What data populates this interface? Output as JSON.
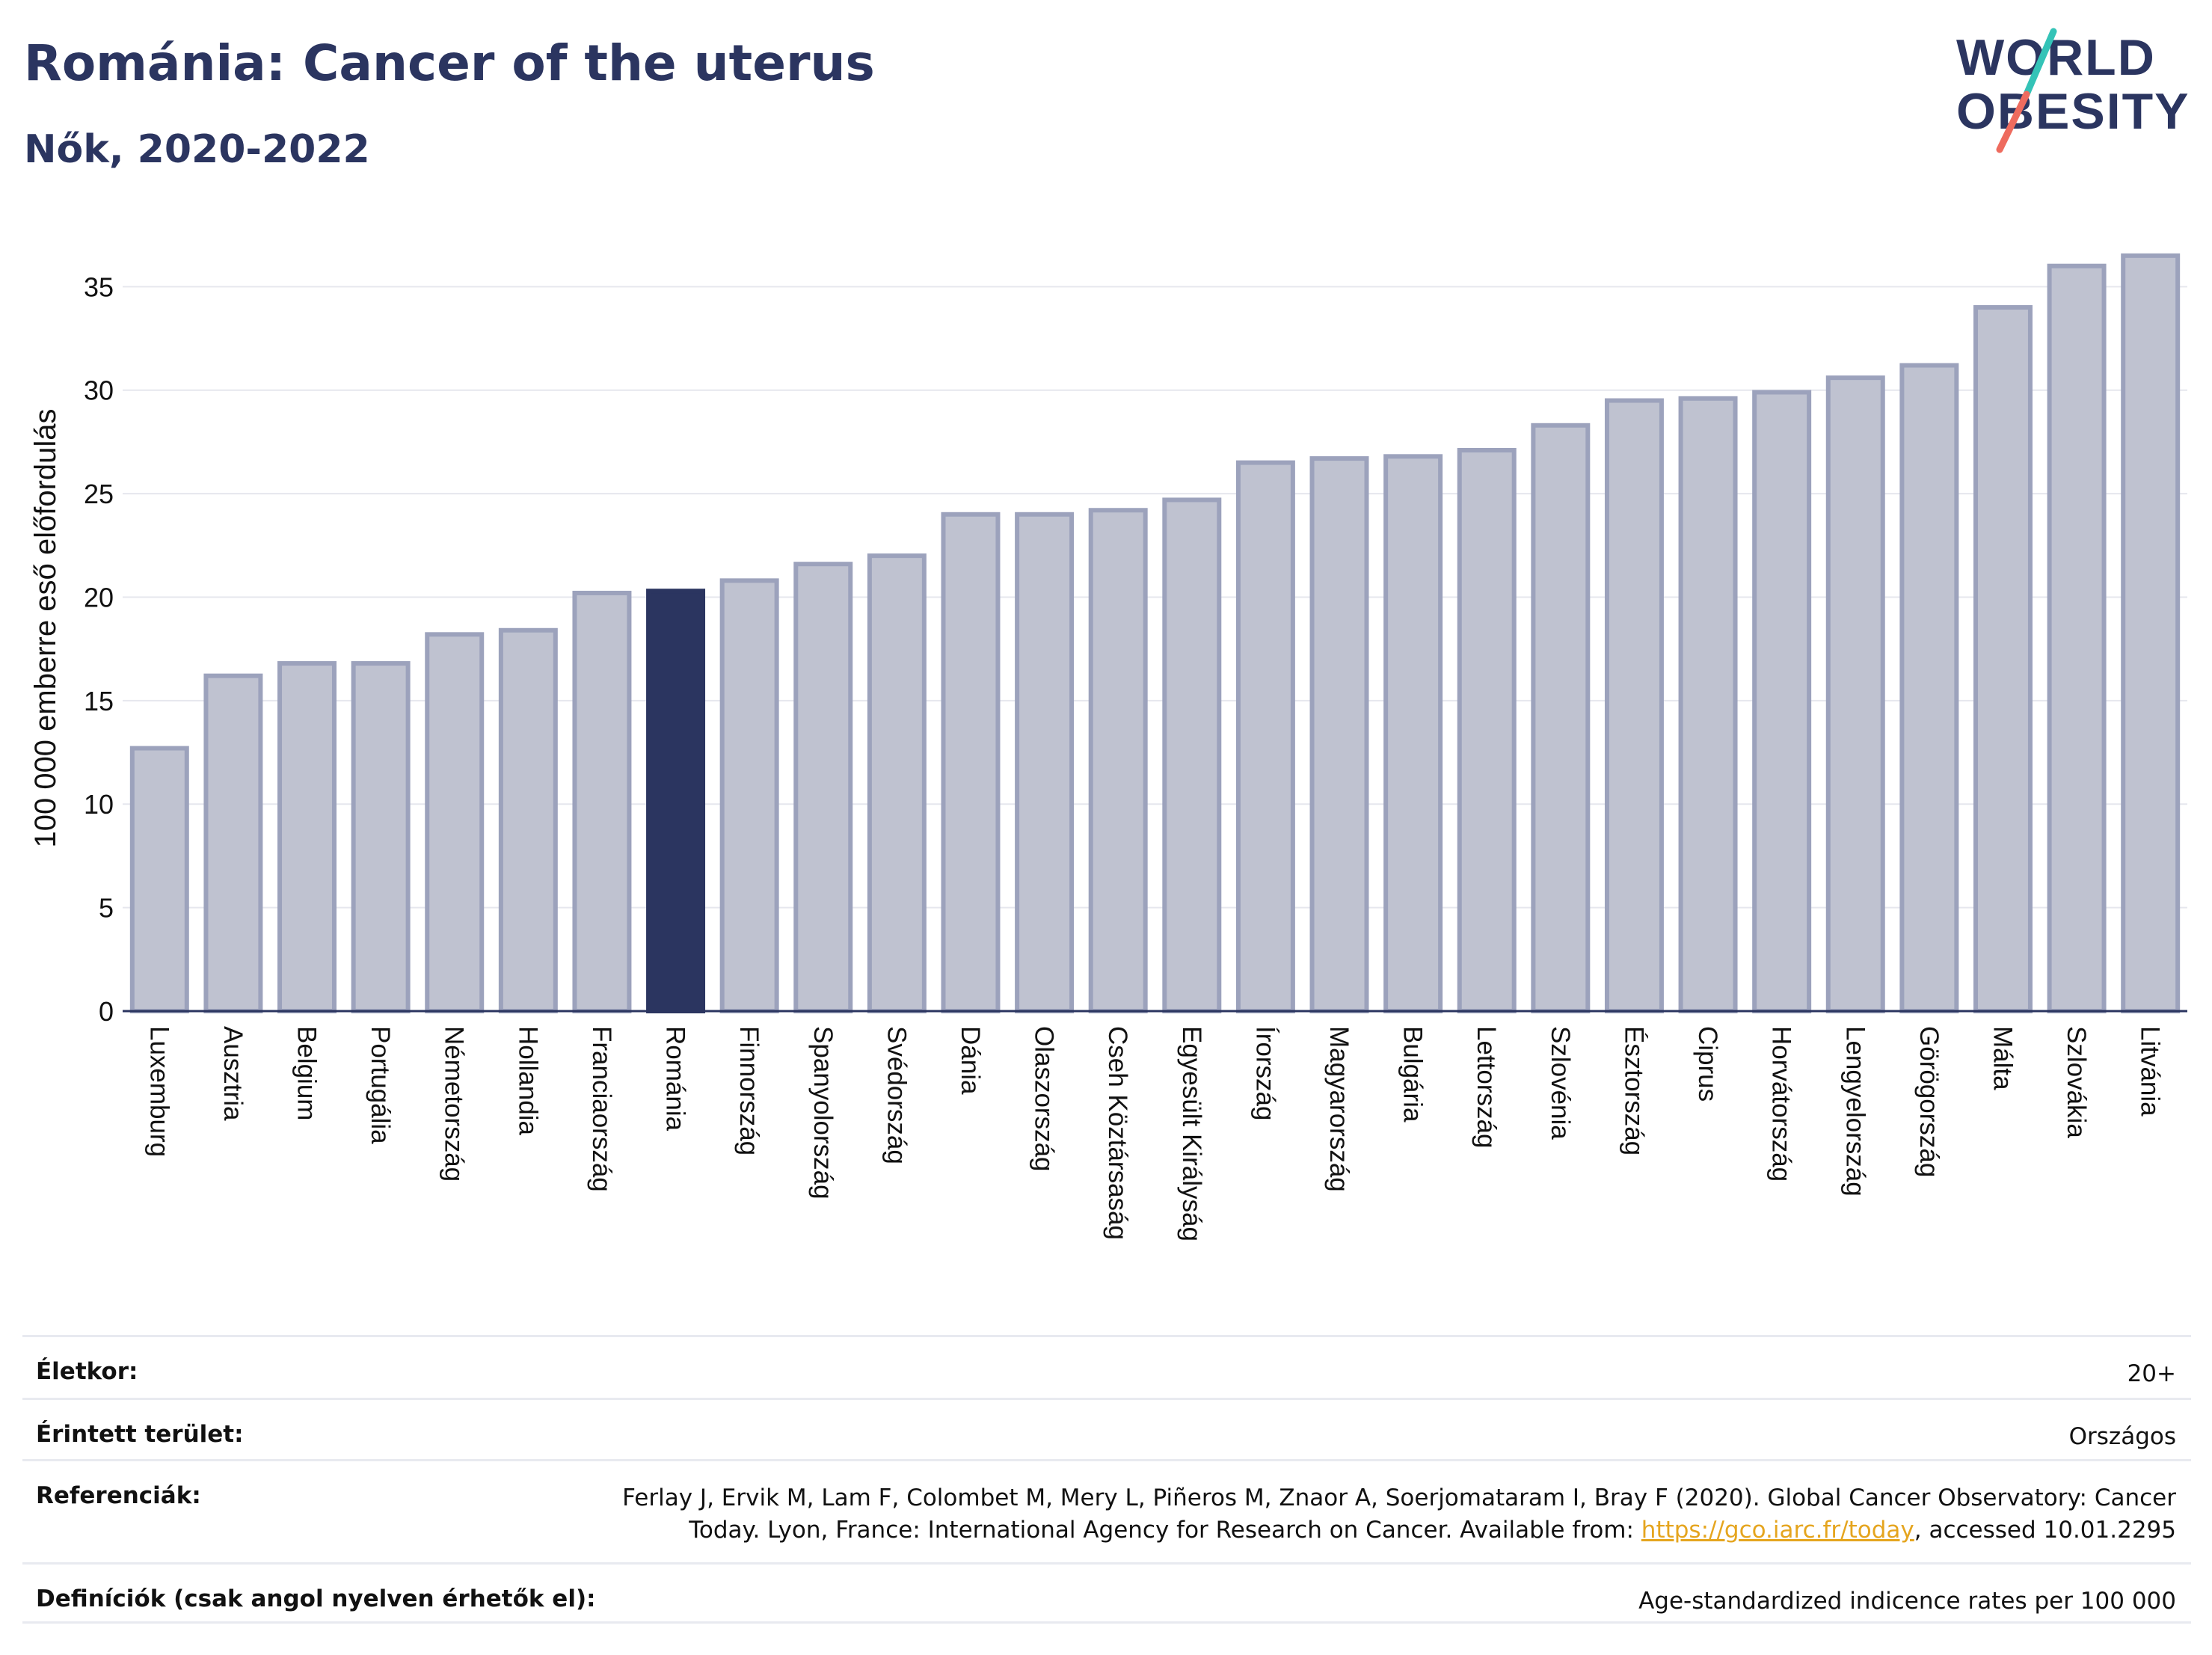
{
  "header": {
    "title": "Románia: Cancer of the uterus",
    "subtitle": "Nők, 2020-2022",
    "logo": {
      "line1": "WORLD",
      "line2": "OBESITY"
    }
  },
  "colors": {
    "title": "#2b3560",
    "bar_default_fill": "#bfc2d0",
    "bar_default_stroke": "#9ca2bc",
    "bar_highlight": "#2b3560",
    "link": "#e5a51f",
    "logo_teal": "#34c3b7",
    "logo_coral": "#ee6b5e"
  },
  "chart_data": {
    "type": "bar",
    "categories": [
      "Luxemburg",
      "Ausztria",
      "Belgium",
      "Portugália",
      "Németország",
      "Hollandia",
      "Franciaország",
      "Románia",
      "Finnország",
      "Spanyolország",
      "Svédország",
      "Dánia",
      "Olaszország",
      "Cseh Köztársaság",
      "Egyesült Királyság",
      "Írország",
      "Magyarország",
      "Bulgária",
      "Lettország",
      "Szlovénia",
      "Észtország",
      "Ciprus",
      "Horvátország",
      "Lengyelország",
      "Görögország",
      "Málta",
      "Szlovákia",
      "Litvánia"
    ],
    "values": [
      12.7,
      16.2,
      16.8,
      16.8,
      18.2,
      18.4,
      20.2,
      20.3,
      20.8,
      21.6,
      22.0,
      24.0,
      24.0,
      24.2,
      24.7,
      26.5,
      26.7,
      26.8,
      27.1,
      28.3,
      29.5,
      29.6,
      29.9,
      30.6,
      31.2,
      34.0,
      36.0,
      36.5
    ],
    "highlight": "Románia",
    "ylabel": "100 000 emberre eső előfordulás",
    "xlabel": "",
    "ylim": [
      0,
      37
    ],
    "yticks": [
      0,
      5,
      10,
      15,
      20,
      25,
      30,
      35
    ],
    "grid": true
  },
  "meta": {
    "age_label": "Életkor:",
    "age_value": "20+",
    "area_label": "Érintett terület:",
    "area_value": "Országos",
    "ref_label": "Referenciák:",
    "ref_line1": "Ferlay J, Ervik M, Lam F, Colombet M, Mery L, Piñeros M, Znaor A, Soerjomataram I, Bray F (2020). Global Cancer Observatory: Cancer",
    "ref_line2_pre": "Today. Lyon, France: International Agency for Research on Cancer. Available from: ",
    "ref_link": "https://gco.iarc.fr/today",
    "ref_line2_post": ", accessed 10.01.2295",
    "def_label": "Definíciók (csak angol nyelven érhetők el):",
    "def_value": "Age-standardized indicence rates per 100 000"
  }
}
